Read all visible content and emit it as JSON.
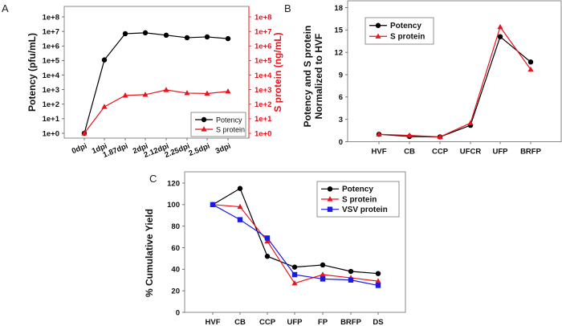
{
  "chart_data": [
    {
      "panel": "A",
      "type": "line",
      "title": "",
      "xlabel": "",
      "ylabel": "Potency (pfu/mL)",
      "y2label": "S protein (ng/mL)",
      "yscale": "log",
      "ylim": [
        1,
        100000000
      ],
      "y2lim": [
        1,
        100000000
      ],
      "yticks": [
        "1e+0",
        "1e+1",
        "1e+2",
        "1e+3",
        "1e+4",
        "1e+5",
        "1e+6",
        "1e+7",
        "1e+8"
      ],
      "y2ticks": [
        "1e+0",
        "1e+1",
        "1e+2",
        "1e+3",
        "1e+4",
        "1e+5",
        "1e+6",
        "1e+7",
        "1e+8"
      ],
      "categories": [
        "0dpi",
        "1dpi",
        "1.87dpi",
        "2dpi",
        "2.12dpi",
        "2.25dpi",
        "2.5dpi",
        "3dpi"
      ],
      "series": [
        {
          "name": "Potency",
          "axis": "left",
          "color": "#000000",
          "marker": "circle",
          "values": [
            1,
            110000,
            7000000,
            8000000,
            5500000,
            3700000,
            4200000,
            3200000
          ]
        },
        {
          "name": "S protein",
          "axis": "right",
          "color": "#e8141e",
          "marker": "triangle",
          "values": [
            1,
            66,
            400,
            450,
            950,
            580,
            540,
            750
          ]
        }
      ],
      "legend": "bottom-right",
      "grid": false
    },
    {
      "panel": "B",
      "type": "line",
      "title": "",
      "xlabel": "",
      "ylabel": "Potency and S protein Normalized to HVF",
      "ylabel_lines": [
        "Potency and S protein",
        "Normalized to HVF"
      ],
      "ylim": [
        0,
        18
      ],
      "yticks": [
        "0",
        "3",
        "6",
        "9",
        "12",
        "15",
        "18"
      ],
      "categories": [
        "HVF",
        "CB",
        "CCP",
        "UFCR",
        "UFP",
        "BRFP"
      ],
      "series": [
        {
          "name": "Potency",
          "color": "#000000",
          "marker": "circle",
          "values": [
            1.0,
            0.7,
            0.65,
            2.2,
            14.1,
            10.7
          ]
        },
        {
          "name": "S protein",
          "color": "#e8141e",
          "marker": "triangle",
          "values": [
            1.0,
            0.85,
            0.65,
            2.5,
            15.4,
            9.7
          ]
        }
      ],
      "legend": "top-left",
      "grid": false
    },
    {
      "panel": "C",
      "type": "line",
      "title": "",
      "xlabel": "",
      "ylabel": "% Cumulative Yield",
      "ylim": [
        0,
        130
      ],
      "yticks": [
        "0",
        "20",
        "40",
        "60",
        "80",
        "100",
        "120"
      ],
      "categories": [
        "HVF",
        "CB",
        "CCP",
        "UFP",
        "FP",
        "BRFP",
        "DS"
      ],
      "series": [
        {
          "name": "Potency",
          "color": "#000000",
          "marker": "circle",
          "values": [
            100,
            115,
            52,
            42,
            44,
            38,
            36
          ]
        },
        {
          "name": "S protein",
          "color": "#e8141e",
          "marker": "triangle",
          "values": [
            100,
            98,
            66,
            27,
            35,
            32,
            29
          ]
        },
        {
          "name": "VSV protein",
          "color": "#1a1ae6",
          "marker": "square",
          "values": [
            100,
            86,
            69,
            35,
            31,
            30,
            25
          ]
        }
      ],
      "legend": "top-right",
      "grid": false
    }
  ]
}
